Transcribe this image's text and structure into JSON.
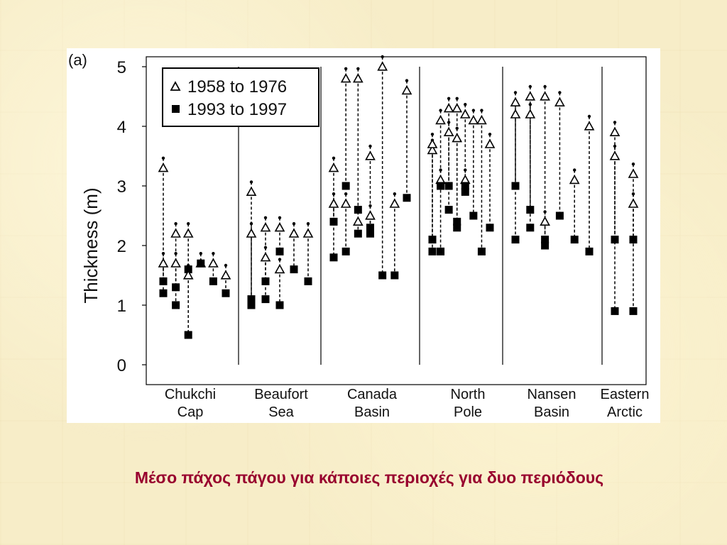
{
  "caption": "Μέσο πάχος πάγου για κάποιες περιοχές για δυο περιόδους",
  "chart_data": {
    "type": "scatter",
    "panel_label": "(a)",
    "ylabel": "Thickness  (m)",
    "ylim": [
      0,
      5
    ],
    "yticks": [
      "0",
      "1",
      "2",
      "3",
      "4",
      "5"
    ],
    "grid": false,
    "legend_position": "top-left",
    "colors": {
      "early": "#000000",
      "late": "#000000",
      "connector": "#000000"
    },
    "regions": [
      {
        "name": "Chukchi Cap",
        "line1": "Chukchi",
        "line2": "Cap"
      },
      {
        "name": "Beaufort Sea",
        "line1": "Beaufort",
        "line2": "Sea"
      },
      {
        "name": "Canada Basin",
        "line1": "Canada",
        "line2": "Basin"
      },
      {
        "name": "North Pole",
        "line1": "North",
        "line2": "Pole"
      },
      {
        "name": "Nansen Basin",
        "line1": "Nansen",
        "line2": "Basin"
      },
      {
        "name": "Eastern Arctic",
        "line1": "Eastern",
        "line2": "Arctic"
      }
    ],
    "series": [
      {
        "name": "1958 to 1976",
        "marker": "open-triangle"
      },
      {
        "name": "1993 to 1997",
        "marker": "filled-square"
      }
    ],
    "pairs": [
      {
        "region": "Chukchi Cap",
        "early": 3.3,
        "late": 1.2
      },
      {
        "region": "Chukchi Cap",
        "early": 2.2,
        "late": 1.0
      },
      {
        "region": "Chukchi Cap",
        "early": 2.2,
        "late": 1.6
      },
      {
        "region": "Chukchi Cap",
        "early": 1.7,
        "late": 1.7
      },
      {
        "region": "Chukchi Cap",
        "early": 1.7,
        "late": 1.4
      },
      {
        "region": "Chukchi Cap",
        "early": 1.5,
        "late": 1.2
      },
      {
        "region": "Chukchi Cap",
        "early": 1.7,
        "late": 1.4
      },
      {
        "region": "Chukchi Cap",
        "early": 1.7,
        "late": 1.3
      },
      {
        "region": "Chukchi Cap",
        "early": 1.5,
        "late": 0.5
      },
      {
        "region": "Beaufort Sea",
        "early": 2.9,
        "late": 1.0
      },
      {
        "region": "Beaufort Sea",
        "early": 1.8,
        "late": 1.1
      },
      {
        "region": "Beaufort Sea",
        "early": 1.6,
        "late": 1.0
      },
      {
        "region": "Beaufort Sea",
        "early": 2.2,
        "late": 1.6
      },
      {
        "region": "Beaufort Sea",
        "early": 2.2,
        "late": 1.4
      },
      {
        "region": "Beaufort Sea",
        "early": 2.2,
        "late": 1.1
      },
      {
        "region": "Beaufort Sea",
        "early": 2.3,
        "late": 1.4
      },
      {
        "region": "Beaufort Sea",
        "early": 2.3,
        "late": 1.9
      },
      {
        "region": "Canada Basin",
        "early": 2.7,
        "late": 2.4
      },
      {
        "region": "Canada Basin",
        "early": 2.7,
        "late": 1.9
      },
      {
        "region": "Canada Basin",
        "early": 2.4,
        "late": 2.2
      },
      {
        "region": "Canada Basin",
        "early": 2.5,
        "late": 2.2
      },
      {
        "region": "Canada Basin",
        "early": 5.0,
        "late": 1.5
      },
      {
        "region": "Canada Basin",
        "early": 2.7,
        "late": 1.5
      },
      {
        "region": "Canada Basin",
        "early": 4.6,
        "late": 2.8
      },
      {
        "region": "Canada Basin",
        "early": 3.3,
        "late": 1.8
      },
      {
        "region": "Canada Basin",
        "early": 4.8,
        "late": 3.0
      },
      {
        "region": "Canada Basin",
        "early": 4.8,
        "late": 2.6
      },
      {
        "region": "Canada Basin",
        "early": 3.5,
        "late": 2.3
      },
      {
        "region": "North Pole",
        "early": 3.6,
        "late": 1.9
      },
      {
        "region": "North Pole",
        "early": 3.1,
        "late": 1.9
      },
      {
        "region": "North Pole",
        "early": 4.3,
        "late": 3.0
      },
      {
        "region": "North Pole",
        "early": 4.3,
        "late": 2.4
      },
      {
        "region": "North Pole",
        "early": 4.2,
        "late": 2.9
      },
      {
        "region": "North Pole",
        "early": 4.1,
        "late": 2.5
      },
      {
        "region": "North Pole",
        "early": 4.1,
        "late": 1.9
      },
      {
        "region": "North Pole",
        "early": 3.7,
        "late": 2.3
      },
      {
        "region": "North Pole",
        "early": 3.7,
        "late": 2.1
      },
      {
        "region": "North Pole",
        "early": 4.1,
        "late": 3.0
      },
      {
        "region": "North Pole",
        "early": 3.9,
        "late": 2.6
      },
      {
        "region": "North Pole",
        "early": 3.8,
        "late": 2.3
      },
      {
        "region": "North Pole",
        "early": 3.1,
        "late": 3.0
      },
      {
        "region": "Nansen Basin",
        "early": 4.4,
        "late": 2.1
      },
      {
        "region": "Nansen Basin",
        "early": 4.5,
        "late": 2.6
      },
      {
        "region": "Nansen Basin",
        "early": 4.5,
        "late": 2.1
      },
      {
        "region": "Nansen Basin",
        "early": 4.4,
        "late": 2.5
      },
      {
        "region": "Nansen Basin",
        "early": 3.1,
        "late": 2.1
      },
      {
        "region": "Nansen Basin",
        "early": 4.0,
        "late": 1.9
      },
      {
        "region": "Nansen Basin",
        "early": 4.2,
        "late": 3.0
      },
      {
        "region": "Nansen Basin",
        "early": 4.2,
        "late": 2.3
      },
      {
        "region": "Nansen Basin",
        "early": 2.4,
        "late": 2.0
      },
      {
        "region": "Eastern Arctic",
        "early": 3.5,
        "late": 2.1
      },
      {
        "region": "Eastern Arctic",
        "early": 2.7,
        "late": 2.1
      },
      {
        "region": "Eastern Arctic",
        "early": 3.9,
        "late": 0.9
      },
      {
        "region": "Eastern Arctic",
        "early": 3.2,
        "late": 0.9
      }
    ]
  }
}
